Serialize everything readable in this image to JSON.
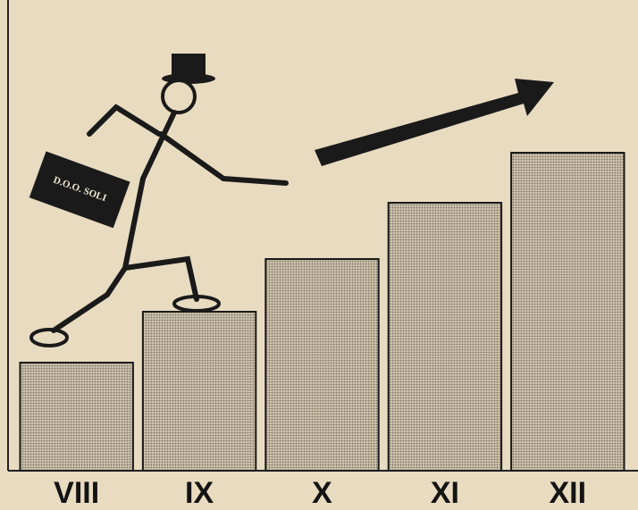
{
  "chart_data": {
    "type": "bar",
    "categories": [
      "VIII",
      "IX",
      "X",
      "XI",
      "XII"
    ],
    "values": [
      121,
      178,
      237,
      300,
      356
    ],
    "color": "#b9ad98",
    "ylim": [
      0,
      400
    ],
    "annotation": "D.O.O. SOLI"
  }
}
